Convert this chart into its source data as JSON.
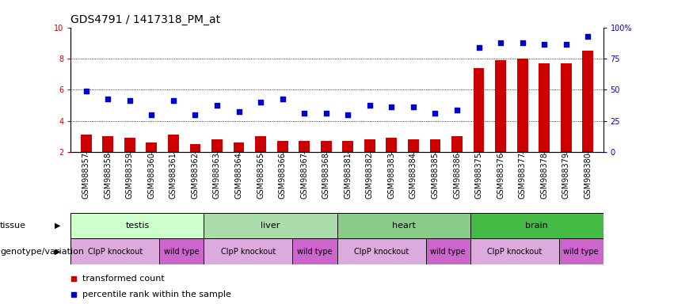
{
  "title": "GDS4791 / 1417318_PM_at",
  "samples": [
    "GSM988357",
    "GSM988358",
    "GSM988359",
    "GSM988360",
    "GSM988361",
    "GSM988362",
    "GSM988363",
    "GSM988364",
    "GSM988365",
    "GSM988366",
    "GSM988367",
    "GSM988368",
    "GSM988381",
    "GSM988382",
    "GSM988383",
    "GSM988384",
    "GSM988385",
    "GSM988386",
    "GSM988375",
    "GSM988376",
    "GSM988377",
    "GSM988378",
    "GSM988379",
    "GSM988380"
  ],
  "bar_values": [
    3.1,
    3.0,
    2.9,
    2.6,
    3.1,
    2.5,
    2.8,
    2.6,
    3.0,
    2.7,
    2.7,
    2.7,
    2.7,
    2.8,
    2.9,
    2.8,
    2.8,
    3.0,
    7.4,
    7.9,
    8.0,
    7.7,
    7.7,
    8.5
  ],
  "scatter_values": [
    5.9,
    5.4,
    5.3,
    4.4,
    5.3,
    4.4,
    5.0,
    4.6,
    5.2,
    5.4,
    4.5,
    4.5,
    4.4,
    5.0,
    4.9,
    4.9,
    4.5,
    4.7,
    8.7,
    9.0,
    9.0,
    8.9,
    8.9,
    9.4
  ],
  "ylim": [
    2,
    10
  ],
  "yticks": [
    2,
    4,
    6,
    8,
    10
  ],
  "ytick_labels_left": [
    "2",
    "4",
    "6",
    "8",
    "10"
  ],
  "right_ytick_labels": [
    "0",
    "25",
    "50",
    "75",
    "100%"
  ],
  "bar_color": "#CC0000",
  "scatter_color": "#0000CC",
  "tissue_row": [
    {
      "label": "testis",
      "start": 0,
      "end": 6,
      "color": "#CCFFCC"
    },
    {
      "label": "liver",
      "start": 6,
      "end": 12,
      "color": "#AADDAA"
    },
    {
      "label": "heart",
      "start": 12,
      "end": 18,
      "color": "#88CC88"
    },
    {
      "label": "brain",
      "start": 18,
      "end": 24,
      "color": "#44BB44"
    }
  ],
  "genotype_row": [
    {
      "label": "ClpP knockout",
      "start": 0,
      "end": 4,
      "color": "#DDAADD"
    },
    {
      "label": "wild type",
      "start": 4,
      "end": 6,
      "color": "#CC66CC"
    },
    {
      "label": "ClpP knockout",
      "start": 6,
      "end": 10,
      "color": "#DDAADD"
    },
    {
      "label": "wild type",
      "start": 10,
      "end": 12,
      "color": "#CC66CC"
    },
    {
      "label": "ClpP knockout",
      "start": 12,
      "end": 16,
      "color": "#DDAADD"
    },
    {
      "label": "wild type",
      "start": 16,
      "end": 18,
      "color": "#CC66CC"
    },
    {
      "label": "ClpP knockout",
      "start": 18,
      "end": 22,
      "color": "#DDAADD"
    },
    {
      "label": "wild type",
      "start": 22,
      "end": 24,
      "color": "#CC66CC"
    }
  ],
  "legend_items": [
    {
      "label": "transformed count",
      "color": "#CC0000"
    },
    {
      "label": "percentile rank within the sample",
      "color": "#0000CC"
    }
  ],
  "tissue_label": "tissue",
  "genotype_label": "genotype/variation",
  "title_fontsize": 10,
  "tick_fontsize": 7,
  "label_fontsize": 8,
  "row_label_fontsize": 8,
  "geno_fontsize": 7
}
